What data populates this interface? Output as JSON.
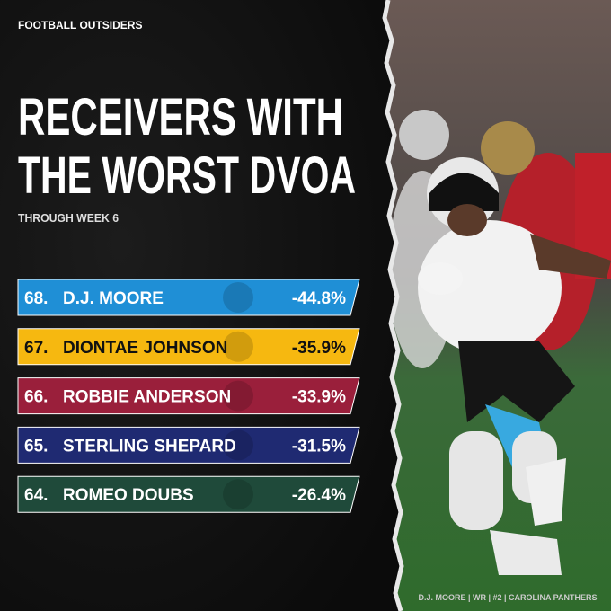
{
  "brand": "FOOTBALL OUTSIDERS",
  "title": [
    "RECEIVERS WITH",
    "THE WORST DVOA"
  ],
  "subtitle": "THROUGH WEEK 6",
  "rows": [
    {
      "rank": "68.",
      "name": "D.J. MOORE",
      "value": "-44.8%"
    },
    {
      "rank": "67.",
      "name": "DIONTAE JOHNSON",
      "value": "-35.9%"
    },
    {
      "rank": "66.",
      "name": "ROBBIE ANDERSON",
      "value": "-33.9%"
    },
    {
      "rank": "65.",
      "name": "STERLING SHEPARD",
      "value": "-31.5%"
    },
    {
      "rank": "64.",
      "name": "ROMEO DOUBS",
      "value": "-26.4%"
    }
  ],
  "photo_caption": "D.J. MOORE | WR | #2 | CAROLINA PANTHERS"
}
